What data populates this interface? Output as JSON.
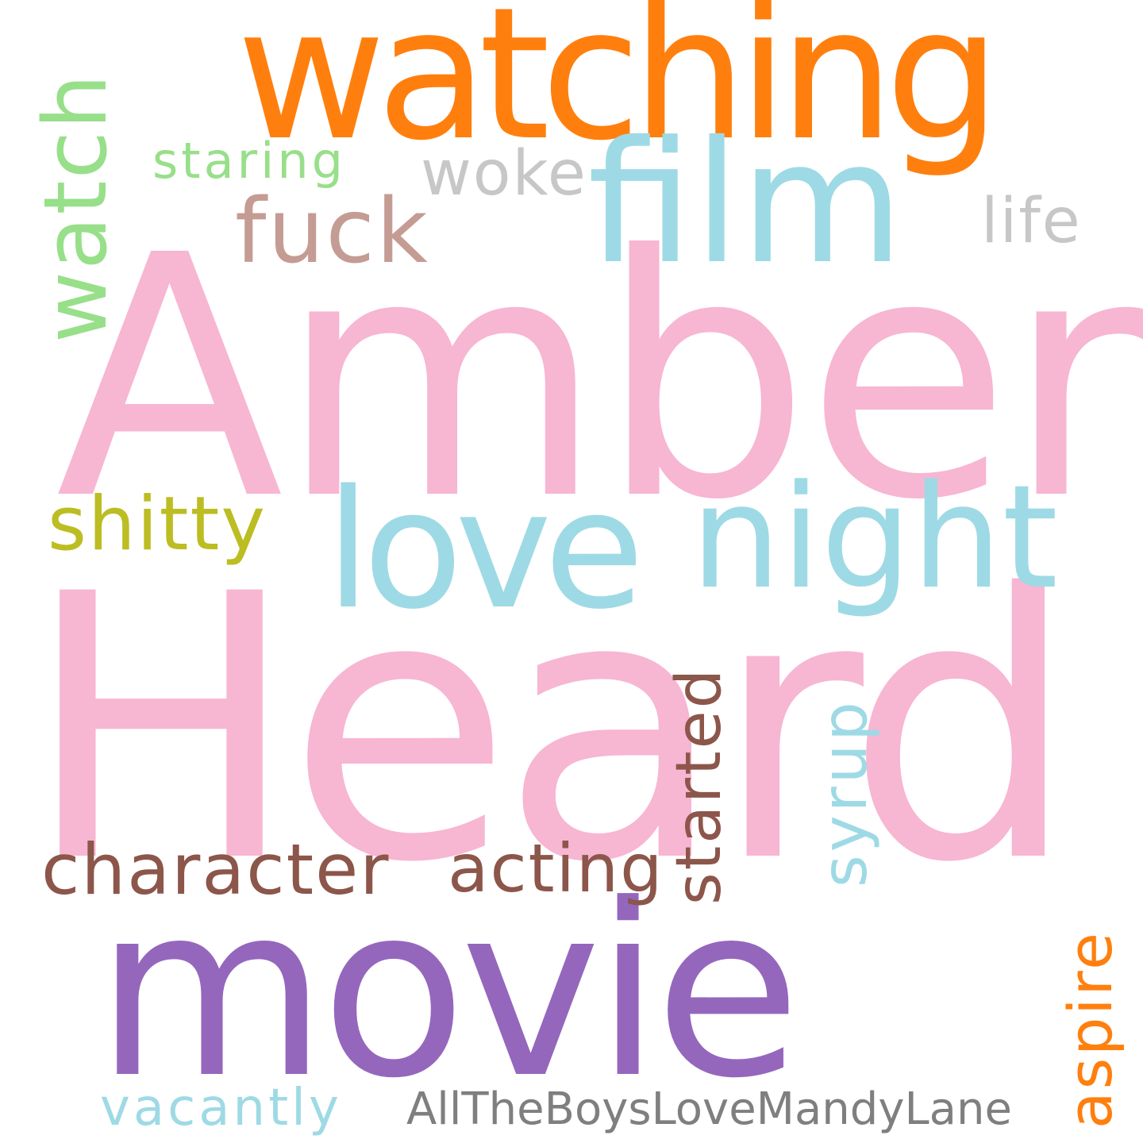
{
  "words": {
    "amber": {
      "text": "Amber",
      "color": "#f7b6d2"
    },
    "heard": {
      "text": "Heard",
      "color": "#f7b6d2"
    },
    "watching": {
      "text": "watching",
      "color": "#ff7f0e"
    },
    "movie": {
      "text": "movie",
      "color": "#9467bd"
    },
    "film": {
      "text": "film",
      "color": "#9edae5"
    },
    "love": {
      "text": "love",
      "color": "#9edae5"
    },
    "night": {
      "text": "night",
      "color": "#9edae5"
    },
    "watch": {
      "text": "watch",
      "color": "#98df8a"
    },
    "fuck": {
      "text": "fuck",
      "color": "#c49c94"
    },
    "shitty": {
      "text": "shitty",
      "color": "#bcbd22"
    },
    "character": {
      "text": "character",
      "color": "#8c564b"
    },
    "acting": {
      "text": "acting",
      "color": "#8c564b"
    },
    "started": {
      "text": "started",
      "color": "#8c564b"
    },
    "syrup": {
      "text": "syrup",
      "color": "#9edae5"
    },
    "aspire": {
      "text": "aspire",
      "color": "#ff7f0e"
    },
    "woke": {
      "text": "woke",
      "color": "#c7c7c7"
    },
    "life": {
      "text": "life",
      "color": "#c7c7c7"
    },
    "staring": {
      "text": "staring",
      "color": "#98df8a"
    },
    "vacantly": {
      "text": "vacantly",
      "color": "#9edae5"
    },
    "allTheBoys": {
      "text": "AllTheBoysLoveMandyLane",
      "color": "#7f7f7f"
    }
  }
}
